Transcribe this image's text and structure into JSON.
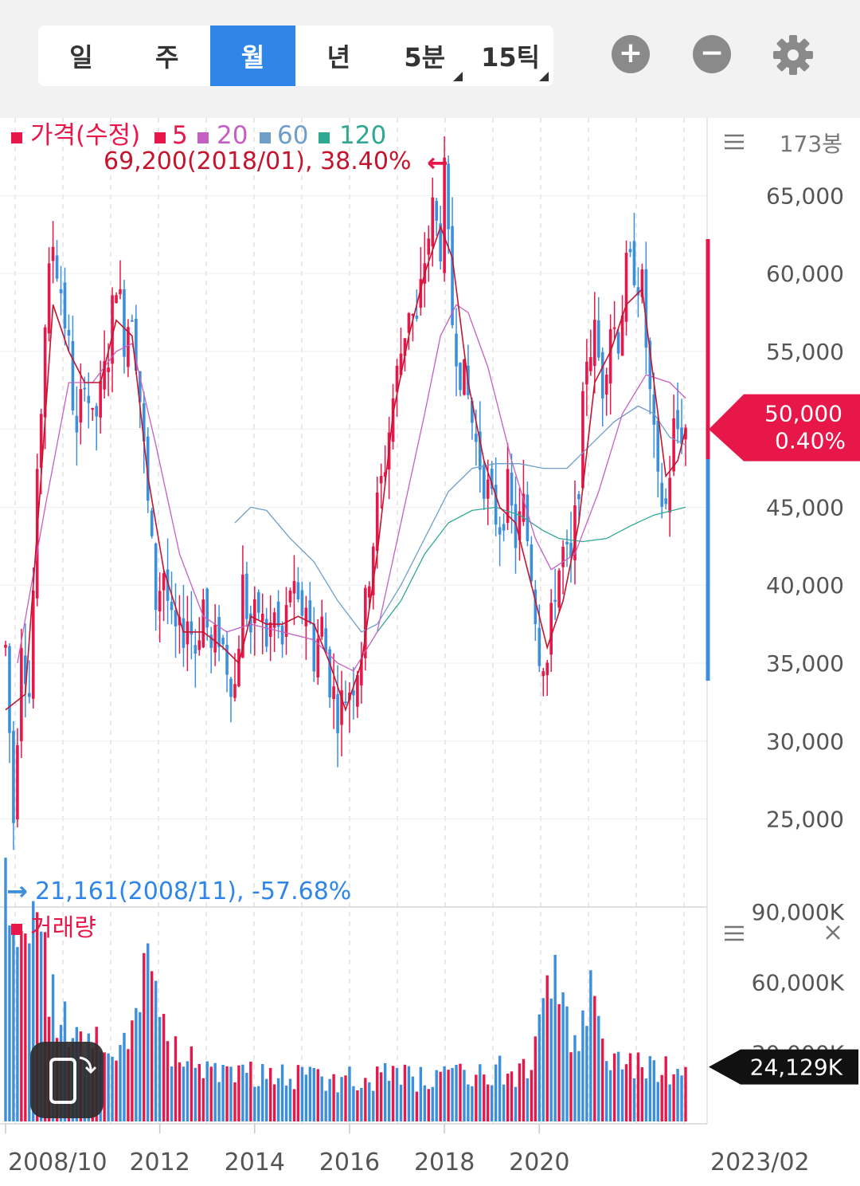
{
  "tabs": [
    {
      "label": "일",
      "active": false,
      "dropdown": false
    },
    {
      "label": "주",
      "active": false,
      "dropdown": false
    },
    {
      "label": "월",
      "active": true,
      "dropdown": false
    },
    {
      "label": "년",
      "active": false,
      "dropdown": false
    },
    {
      "label": "5분",
      "active": false,
      "dropdown": true
    },
    {
      "label": "15틱",
      "active": false,
      "dropdown": true
    }
  ],
  "toolbar": {
    "zoom_in_icon": "plus-circle-icon",
    "zoom_out_icon": "minus-circle-icon",
    "settings_icon": "gear-icon"
  },
  "colors": {
    "up": "#e8174a",
    "down": "#3b8fdb",
    "ma5": "#c4142e",
    "ma20": "#c45fc4",
    "ma60": "#6f9ec9",
    "ma120": "#2fa893",
    "accent": "#2f86e8"
  },
  "chart_data": {
    "type": "candlestick",
    "legend": [
      {
        "label": "가격(수정)",
        "color": "#e8174a"
      },
      {
        "label": "5",
        "color": "#e8174a"
      },
      {
        "label": "20",
        "color": "#c45fc4"
      },
      {
        "label": "60",
        "color": "#6f9ec9"
      },
      {
        "label": "120",
        "color": "#2fa893"
      }
    ],
    "bar_count": "173봉",
    "high_marker": "69,200(2018/01), 38.40%",
    "low_marker": "21,161(2008/11), -57.68%",
    "y_ticks": [
      "65,000",
      "60,000",
      "55,000",
      "50,000",
      "45,000",
      "40,000",
      "35,000",
      "30,000",
      "25,000"
    ],
    "y_tick_values": [
      65000,
      60000,
      55000,
      50000,
      45000,
      40000,
      35000,
      30000,
      25000
    ],
    "ylim": [
      19350,
      69980
    ],
    "current_price": "50,000",
    "current_change": "0.40%",
    "current_value": 50000,
    "x_ticks": [
      "2008/10",
      "2012",
      "2014",
      "2016",
      "2018",
      "2020"
    ],
    "x_tick_index": [
      0,
      39,
      63,
      87,
      111,
      135
    ],
    "x_end_label": "2023/02",
    "path": [
      [
        0,
        36000
      ],
      [
        2,
        25000
      ],
      [
        4,
        37000
      ],
      [
        6,
        33000
      ],
      [
        8,
        46000
      ],
      [
        10,
        57000
      ],
      [
        12,
        62000
      ],
      [
        14,
        59000
      ],
      [
        16,
        55000
      ],
      [
        18,
        49000
      ],
      [
        20,
        54000
      ],
      [
        22,
        50000
      ],
      [
        24,
        52000
      ],
      [
        26,
        55000
      ],
      [
        28,
        60000
      ],
      [
        30,
        56000
      ],
      [
        32,
        58000
      ],
      [
        34,
        52000
      ],
      [
        36,
        45000
      ],
      [
        38,
        39000
      ],
      [
        40,
        41000
      ],
      [
        42,
        37000
      ],
      [
        44,
        36500
      ],
      [
        46,
        38000
      ],
      [
        48,
        36000
      ],
      [
        50,
        39000
      ],
      [
        52,
        35500
      ],
      [
        54,
        37000
      ],
      [
        56,
        35000
      ],
      [
        58,
        33500
      ],
      [
        60,
        40000
      ],
      [
        62,
        37000
      ],
      [
        64,
        38500
      ],
      [
        66,
        36500
      ],
      [
        68,
        38000
      ],
      [
        70,
        36000
      ],
      [
        72,
        40000
      ],
      [
        74,
        38000
      ],
      [
        76,
        39000
      ],
      [
        78,
        35500
      ],
      [
        80,
        37500
      ],
      [
        82,
        34000
      ],
      [
        84,
        32000
      ],
      [
        86,
        33000
      ],
      [
        88,
        34000
      ],
      [
        90,
        36000
      ],
      [
        92,
        41000
      ],
      [
        94,
        45000
      ],
      [
        96,
        48000
      ],
      [
        98,
        52000
      ],
      [
        100,
        55000
      ],
      [
        102,
        58000
      ],
      [
        104,
        56500
      ],
      [
        106,
        61000
      ],
      [
        108,
        64000
      ],
      [
        110,
        62000
      ],
      [
        111,
        66000
      ],
      [
        113,
        57000
      ],
      [
        115,
        54000
      ],
      [
        117,
        52000
      ],
      [
        119,
        49000
      ],
      [
        121,
        47000
      ],
      [
        123,
        45000
      ],
      [
        125,
        44000
      ],
      [
        127,
        46000
      ],
      [
        129,
        43000
      ],
      [
        131,
        45000
      ],
      [
        133,
        41000
      ],
      [
        135,
        36000
      ],
      [
        137,
        35000
      ],
      [
        139,
        40000
      ],
      [
        141,
        42000
      ],
      [
        143,
        41000
      ],
      [
        145,
        47000
      ],
      [
        147,
        55000
      ],
      [
        149,
        56000
      ],
      [
        151,
        53000
      ],
      [
        153,
        57000
      ],
      [
        155,
        56000
      ],
      [
        157,
        60000
      ],
      [
        159,
        60500
      ],
      [
        161,
        59000
      ],
      [
        163,
        52000
      ],
      [
        165,
        46000
      ],
      [
        167,
        45000
      ],
      [
        169,
        50000
      ],
      [
        172,
        50000
      ]
    ],
    "ma5": [
      [
        0,
        32000
      ],
      [
        5,
        33000
      ],
      [
        9,
        47000
      ],
      [
        12,
        58000
      ],
      [
        16,
        55000
      ],
      [
        20,
        53000
      ],
      [
        24,
        53000
      ],
      [
        28,
        57000
      ],
      [
        32,
        56000
      ],
      [
        36,
        47000
      ],
      [
        40,
        41000
      ],
      [
        45,
        37000
      ],
      [
        50,
        37000
      ],
      [
        55,
        36000
      ],
      [
        59,
        35000
      ],
      [
        62,
        38000
      ],
      [
        66,
        37500
      ],
      [
        70,
        37500
      ],
      [
        74,
        38000
      ],
      [
        78,
        37500
      ],
      [
        82,
        35000
      ],
      [
        86,
        32000
      ],
      [
        90,
        35000
      ],
      [
        94,
        42000
      ],
      [
        98,
        51000
      ],
      [
        102,
        56000
      ],
      [
        106,
        60000
      ],
      [
        110,
        63000
      ],
      [
        113,
        61000
      ],
      [
        117,
        53000
      ],
      [
        121,
        48000
      ],
      [
        125,
        45000
      ],
      [
        129,
        44000
      ],
      [
        133,
        40000
      ],
      [
        137,
        36000
      ],
      [
        141,
        39000
      ],
      [
        145,
        44000
      ],
      [
        149,
        53000
      ],
      [
        153,
        55000
      ],
      [
        157,
        58000
      ],
      [
        161,
        59000
      ],
      [
        164,
        53000
      ],
      [
        167,
        47000
      ],
      [
        170,
        48000
      ],
      [
        172,
        50000
      ]
    ],
    "ma20": [
      [
        3,
        35000
      ],
      [
        10,
        45000
      ],
      [
        16,
        53000
      ],
      [
        22,
        53000
      ],
      [
        28,
        55000
      ],
      [
        32,
        55500
      ],
      [
        38,
        49000
      ],
      [
        44,
        42000
      ],
      [
        50,
        38000
      ],
      [
        56,
        37000
      ],
      [
        62,
        37500
      ],
      [
        70,
        37000
      ],
      [
        78,
        36500
      ],
      [
        84,
        35000
      ],
      [
        88,
        34500
      ],
      [
        94,
        37000
      ],
      [
        100,
        44000
      ],
      [
        106,
        51000
      ],
      [
        110,
        56000
      ],
      [
        114,
        58000
      ],
      [
        117,
        57500
      ],
      [
        122,
        54000
      ],
      [
        128,
        48000
      ],
      [
        134,
        43000
      ],
      [
        138,
        41000
      ],
      [
        144,
        42000
      ],
      [
        150,
        46000
      ],
      [
        156,
        51000
      ],
      [
        162,
        53500
      ],
      [
        168,
        53000
      ],
      [
        172,
        52000
      ]
    ],
    "ma60": [
      [
        58,
        44000
      ],
      [
        62,
        45000
      ],
      [
        66,
        44800
      ],
      [
        72,
        43000
      ],
      [
        78,
        41500
      ],
      [
        84,
        39000
      ],
      [
        90,
        37000
      ],
      [
        94,
        37500
      ],
      [
        100,
        40000
      ],
      [
        106,
        43000
      ],
      [
        112,
        46000
      ],
      [
        118,
        47500
      ],
      [
        124,
        47800
      ],
      [
        130,
        47800
      ],
      [
        136,
        47500
      ],
      [
        142,
        47500
      ],
      [
        148,
        49000
      ],
      [
        154,
        50500
      ],
      [
        160,
        51500
      ],
      [
        164,
        51000
      ],
      [
        168,
        49500
      ],
      [
        172,
        49000
      ]
    ],
    "ma120": [
      [
        94,
        37000
      ],
      [
        100,
        39000
      ],
      [
        106,
        42000
      ],
      [
        112,
        44000
      ],
      [
        118,
        44800
      ],
      [
        124,
        45000
      ],
      [
        130,
        44500
      ],
      [
        136,
        43500
      ],
      [
        140,
        43000
      ],
      [
        146,
        42800
      ],
      [
        152,
        43000
      ],
      [
        158,
        43800
      ],
      [
        164,
        44500
      ],
      [
        172,
        45000
      ]
    ],
    "volume": {
      "label": "거래량",
      "y_ticks": [
        "90,000K",
        "60,000K",
        "30,000K"
      ],
      "y_tick_values": [
        90000,
        60000,
        30000
      ],
      "ylim": [
        0,
        92000
      ],
      "current": "24,129K",
      "current_value": 24129,
      "path": [
        [
          0,
          90000
        ],
        [
          3,
          88000
        ],
        [
          6,
          78000
        ],
        [
          9,
          68000
        ],
        [
          12,
          54000
        ],
        [
          15,
          45000
        ],
        [
          18,
          40000
        ],
        [
          22,
          38000
        ],
        [
          26,
          35000
        ],
        [
          30,
          40000
        ],
        [
          33,
          38000
        ],
        [
          36,
          68000
        ],
        [
          39,
          40000
        ],
        [
          42,
          32000
        ],
        [
          45,
          27000
        ],
        [
          48,
          25000
        ],
        [
          52,
          24000
        ],
        [
          56,
          23000
        ],
        [
          60,
          22000
        ],
        [
          64,
          21000
        ],
        [
          68,
          20000
        ],
        [
          72,
          21000
        ],
        [
          76,
          20000
        ],
        [
          80,
          20000
        ],
        [
          84,
          19000
        ],
        [
          88,
          19000
        ],
        [
          92,
          19500
        ],
        [
          96,
          20000
        ],
        [
          100,
          19500
        ],
        [
          104,
          19000
        ],
        [
          108,
          19500
        ],
        [
          112,
          20000
        ],
        [
          116,
          20000
        ],
        [
          120,
          20500
        ],
        [
          124,
          24000
        ],
        [
          128,
          21000
        ],
        [
          132,
          22000
        ],
        [
          136,
          45000
        ],
        [
          139,
          58000
        ],
        [
          142,
          40000
        ],
        [
          145,
          36000
        ],
        [
          148,
          56000
        ],
        [
          151,
          31000
        ],
        [
          154,
          24000
        ],
        [
          158,
          25000
        ],
        [
          162,
          24000
        ],
        [
          166,
          24000
        ],
        [
          170,
          23000
        ],
        [
          172,
          24129
        ]
      ]
    }
  }
}
